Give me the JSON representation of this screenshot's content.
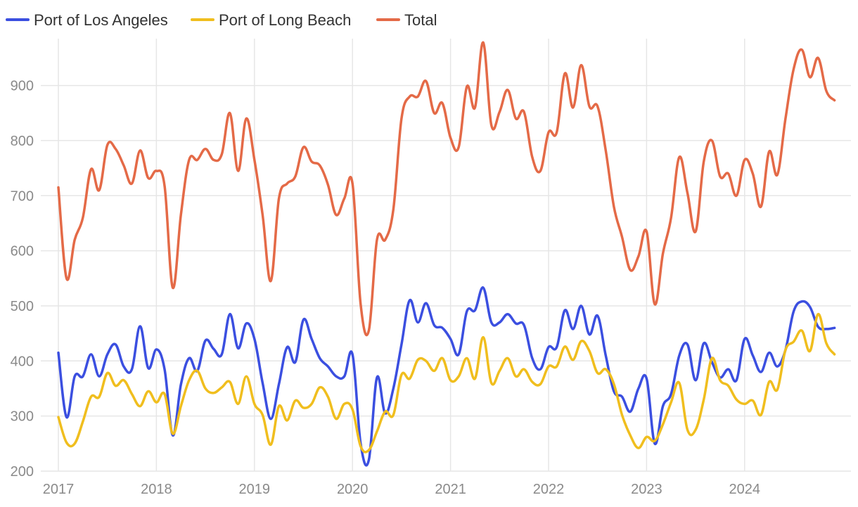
{
  "chart_data": {
    "type": "line",
    "title": "",
    "xlabel": "",
    "ylabel": "",
    "x_start": 2017.0,
    "x_step": 0.0833333,
    "xlim": [
      2017.0,
      2024.98
    ],
    "ylim": [
      200,
      985
    ],
    "yticks": [
      200,
      300,
      400,
      500,
      600,
      700,
      800,
      900
    ],
    "xticks": [
      2017,
      2018,
      2019,
      2020,
      2021,
      2022,
      2023,
      2024
    ],
    "grid": true,
    "legend_position": "top-left",
    "series": [
      {
        "name": "Port of Los Angeles",
        "color": "#3B4FE0",
        "values": [
          415,
          298,
          372,
          372,
          412,
          372,
          412,
          430,
          390,
          385,
          463,
          387,
          421,
          385,
          265,
          357,
          405,
          382,
          437,
          422,
          412,
          485,
          423,
          468,
          440,
          360,
          295,
          358,
          425,
          398,
          475,
          440,
          405,
          390,
          372,
          372,
          412,
          250,
          220,
          370,
          305,
          350,
          430,
          510,
          470,
          505,
          465,
          460,
          440,
          412,
          490,
          492,
          533,
          470,
          470,
          485,
          468,
          465,
          405,
          385,
          425,
          425,
          492,
          458,
          500,
          448,
          482,
          410,
          345,
          335,
          308,
          350,
          368,
          250,
          318,
          340,
          410,
          430,
          365,
          432,
          398,
          370,
          385,
          365,
          440,
          410,
          380,
          415,
          390,
          420,
          490,
          508,
          498,
          462,
          458,
          460
        ]
      },
      {
        "name": "Port of Long Beach",
        "color": "#F0BE1E",
        "values": [
          298,
          252,
          250,
          290,
          335,
          335,
          378,
          355,
          365,
          340,
          318,
          345,
          325,
          340,
          268,
          318,
          365,
          382,
          350,
          342,
          352,
          362,
          322,
          372,
          322,
          302,
          248,
          318,
          292,
          328,
          315,
          322,
          352,
          335,
          295,
          322,
          312,
          245,
          238,
          272,
          308,
          302,
          375,
          368,
          402,
          400,
          382,
          405,
          365,
          372,
          405,
          368,
          443,
          360,
          382,
          405,
          372,
          385,
          362,
          358,
          390,
          390,
          426,
          402,
          436,
          418,
          378,
          385,
          358,
          302,
          265,
          242,
          262,
          255,
          285,
          325,
          360,
          275,
          275,
          330,
          405,
          365,
          355,
          330,
          322,
          328,
          302,
          362,
          348,
          420,
          435,
          455,
          418,
          485,
          432,
          412
        ]
      },
      {
        "name": "Total",
        "color": "#E46A47",
        "values": [
          715,
          550,
          620,
          660,
          748,
          710,
          792,
          785,
          755,
          722,
          782,
          732,
          745,
          718,
          533,
          665,
          765,
          765,
          785,
          765,
          775,
          850,
          745,
          840,
          765,
          665,
          545,
          695,
          722,
          735,
          788,
          762,
          755,
          720,
          665,
          695,
          722,
          503,
          455,
          620,
          620,
          675,
          840,
          880,
          880,
          908,
          850,
          868,
          805,
          788,
          898,
          860,
          978,
          828,
          852,
          892,
          840,
          852,
          770,
          745,
          815,
          815,
          922,
          860,
          937,
          862,
          862,
          782,
          680,
          625,
          565,
          590,
          635,
          503,
          595,
          660,
          770,
          705,
          635,
          762,
          800,
          735,
          740,
          700,
          765,
          740,
          680,
          780,
          738,
          840,
          930,
          965,
          915,
          950,
          890,
          873
        ]
      }
    ]
  }
}
